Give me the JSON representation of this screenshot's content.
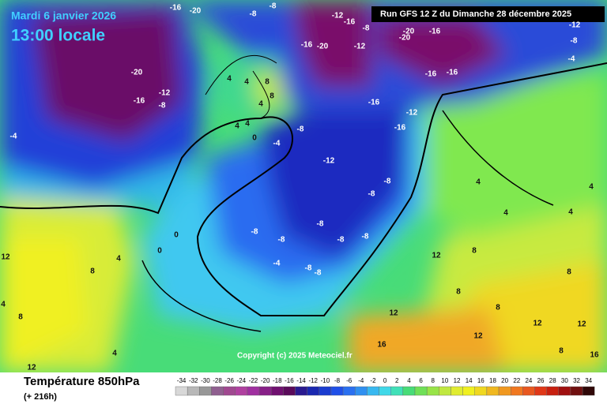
{
  "valid_date": "Mardi 6 janvier 2026",
  "valid_time": "13:00 locale",
  "run_info": "Run GFS 12 Z du Dimanche 28 décembre 2025",
  "copyright": "Copyright (c) 2025 Meteociel.fr",
  "field_name": "Température 850hPa",
  "forecast_hour": "(+ 216h)",
  "legend": {
    "values": [
      -34,
      -32,
      -30,
      -28,
      -26,
      -24,
      -22,
      -20,
      -18,
      -16,
      -14,
      -12,
      -10,
      -8,
      -6,
      -4,
      -2,
      0,
      2,
      4,
      6,
      8,
      10,
      12,
      14,
      16,
      18,
      20,
      22,
      24,
      26,
      28,
      30,
      32,
      34
    ],
    "colors": [
      "#d8d8d8",
      "#b8b8b8",
      "#989898",
      "#906090",
      "#a04890",
      "#b040a0",
      "#a030a0",
      "#882088",
      "#701070",
      "#5a0a5a",
      "#2a1a90",
      "#1a28b0",
      "#1a3cd0",
      "#2050e8",
      "#2a70f0",
      "#3090f0",
      "#38b8f0",
      "#40d8e8",
      "#40e0b8",
      "#48dc78",
      "#70e058",
      "#98e448",
      "#c0e840",
      "#e0ec30",
      "#f0f020",
      "#f0d820",
      "#f0b820",
      "#f09820",
      "#f07820",
      "#e85820",
      "#e03818",
      "#c82010",
      "#a01010",
      "#701010",
      "#300808"
    ]
  },
  "map_labels": [
    -16,
    -20,
    -8,
    -8,
    -12,
    -16,
    -8,
    -20,
    -20,
    -16,
    -20,
    -12,
    -16,
    -20,
    -12,
    -8,
    -16,
    -4,
    -16,
    -16,
    -12,
    -16,
    -16,
    -8,
    -4,
    -12,
    -8,
    -8,
    -8,
    -8,
    -8,
    -8,
    -8,
    -4,
    -8,
    -8,
    0,
    0,
    4,
    8,
    12,
    4,
    8,
    12,
    4,
    4,
    4,
    8,
    8,
    12,
    8,
    8,
    12,
    8,
    12,
    16,
    16,
    12,
    12,
    -12,
    -8,
    -4,
    4,
    4,
    4,
    4,
    8,
    8,
    4,
    4,
    0,
    4
  ]
}
